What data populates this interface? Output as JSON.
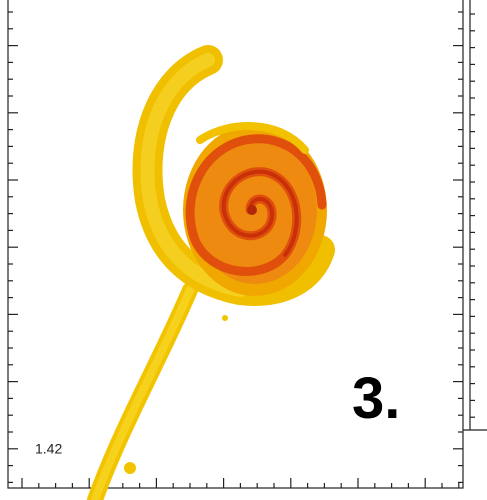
{
  "panel": {
    "time_label": "1.42",
    "panel_number": "3."
  }
}
